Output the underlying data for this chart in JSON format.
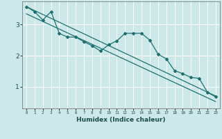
{
  "xlabel": "Humidex (Indice chaleur)",
  "ylabel": "",
  "bg_color": "#cce8e8",
  "grid_color": "#ffffff",
  "line_color": "#1e7070",
  "xlim": [
    -0.5,
    23.5
  ],
  "ylim": [
    0.3,
    3.75
  ],
  "yticks": [
    1,
    2,
    3
  ],
  "xticks": [
    0,
    1,
    2,
    3,
    4,
    5,
    6,
    7,
    8,
    9,
    10,
    11,
    12,
    13,
    14,
    15,
    16,
    17,
    18,
    19,
    20,
    21,
    22,
    23
  ],
  "line1_x": [
    0,
    1,
    2,
    3,
    4,
    5,
    6,
    7,
    8,
    9,
    10,
    11,
    12,
    13,
    14,
    15,
    16,
    17,
    18,
    19,
    20,
    21,
    22,
    23
  ],
  "line1_y": [
    3.58,
    3.42,
    3.15,
    3.42,
    2.72,
    2.6,
    2.6,
    2.45,
    2.32,
    2.15,
    2.35,
    2.48,
    2.72,
    2.72,
    2.72,
    2.5,
    2.05,
    1.9,
    1.52,
    1.42,
    1.3,
    1.27,
    0.82,
    0.67
  ],
  "line2_x": [
    0,
    23
  ],
  "line2_y": [
    3.58,
    0.7
  ],
  "line3_x": [
    0,
    23
  ],
  "line3_y": [
    3.35,
    0.52
  ]
}
